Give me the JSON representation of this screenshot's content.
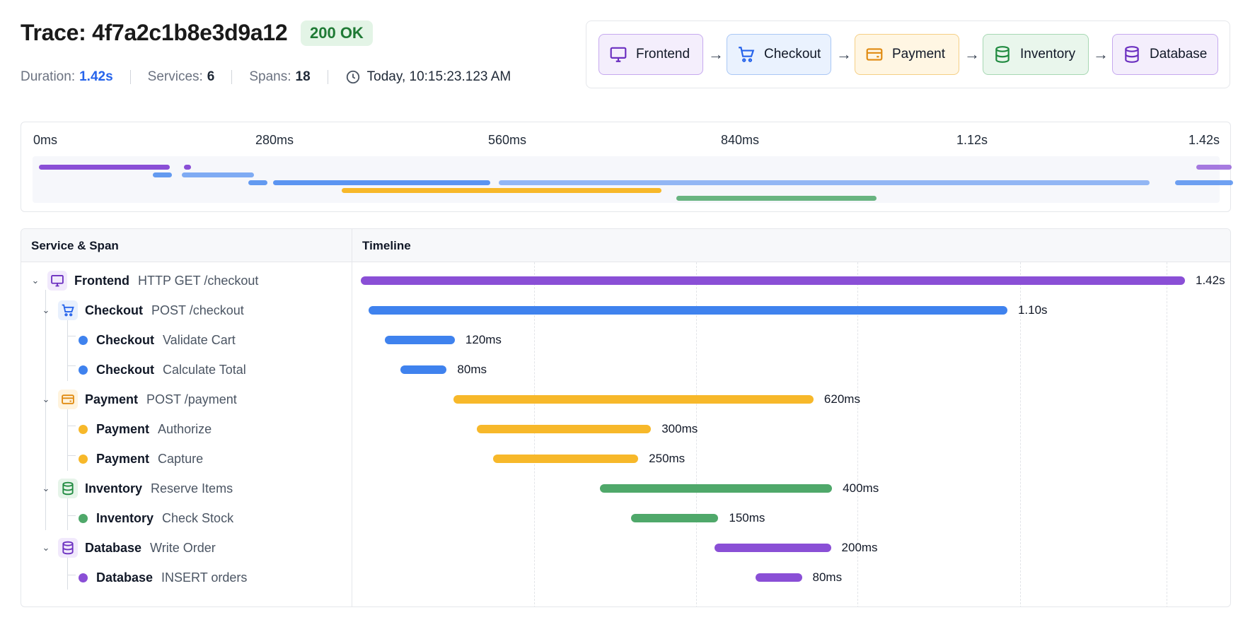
{
  "header": {
    "title": "Trace: 4f7a2c1b8e3d9a12",
    "status": "200 OK",
    "duration_label": "Duration:",
    "duration_value": "1.42s",
    "services_label": "Services:",
    "services_value": "6",
    "spans_label": "Spans:",
    "spans_value": "18",
    "timestamp": "Today, 10:15:23.123 AM"
  },
  "service_map": {
    "nodes": [
      {
        "label": "Frontend",
        "icon": "monitor-icon",
        "color": "#7e3fce"
      },
      {
        "label": "Checkout",
        "icon": "cart-icon",
        "color": "#2f6fe8"
      },
      {
        "label": "Payment",
        "icon": "card-icon",
        "color": "#e8961a"
      },
      {
        "label": "Inventory",
        "icon": "database-icon",
        "color": "#2f8a4a"
      },
      {
        "label": "Database",
        "icon": "database-icon",
        "color": "#7a4cc7"
      }
    ]
  },
  "overview": {
    "ticks": [
      "0ms",
      "280ms",
      "560ms",
      "840ms",
      "1.12s",
      "1.42s"
    ]
  },
  "table": {
    "col_service": "Service & Span",
    "col_timeline": "Timeline"
  },
  "spans": [
    {
      "service": "Frontend",
      "span": "HTTP GET /checkout",
      "start_ms": 0,
      "duration_ms": 1420,
      "duration_label": "1.42s",
      "color": "#8a4fd6",
      "depth": 0,
      "kind": "root",
      "icon": "monitor-icon"
    },
    {
      "service": "Checkout",
      "span": "POST /checkout",
      "start_ms": 14,
      "duration_ms": 1100,
      "duration_label": "1.10s",
      "color": "#3f82ee",
      "depth": 1,
      "kind": "group",
      "icon": "cart-icon"
    },
    {
      "service": "Checkout",
      "span": "Validate Cart",
      "start_ms": 42,
      "duration_ms": 120,
      "duration_label": "120ms",
      "color": "#3f82ee",
      "depth": 2,
      "kind": "leaf"
    },
    {
      "service": "Checkout",
      "span": "Calculate Total",
      "start_ms": 68,
      "duration_ms": 80,
      "duration_label": "80ms",
      "color": "#3f82ee",
      "depth": 2,
      "kind": "leaf"
    },
    {
      "service": "Payment",
      "span": "POST /payment",
      "start_ms": 160,
      "duration_ms": 620,
      "duration_label": "620ms",
      "color": "#f7b82a",
      "depth": 1,
      "kind": "group",
      "icon": "card-icon"
    },
    {
      "service": "Payment",
      "span": "Authorize",
      "start_ms": 200,
      "duration_ms": 300,
      "duration_label": "300ms",
      "color": "#f7b82a",
      "depth": 2,
      "kind": "leaf"
    },
    {
      "service": "Payment",
      "span": "Capture",
      "start_ms": 228,
      "duration_ms": 250,
      "duration_label": "250ms",
      "color": "#f7b82a",
      "depth": 2,
      "kind": "leaf"
    },
    {
      "service": "Inventory",
      "span": "Reserve Items",
      "start_ms": 412,
      "duration_ms": 400,
      "duration_label": "400ms",
      "color": "#4fa86a",
      "depth": 1,
      "kind": "group",
      "icon": "database-icon"
    },
    {
      "service": "Inventory",
      "span": "Check Stock",
      "start_ms": 466,
      "duration_ms": 150,
      "duration_label": "150ms",
      "color": "#4fa86a",
      "depth": 2,
      "kind": "leaf"
    },
    {
      "service": "Database",
      "span": "Write Order",
      "start_ms": 610,
      "duration_ms": 200,
      "duration_label": "200ms",
      "color": "#8a4fd6",
      "depth": 1,
      "kind": "group",
      "icon": "database-icon"
    },
    {
      "service": "Database",
      "span": "INSERT orders",
      "start_ms": 680,
      "duration_ms": 80,
      "duration_label": "80ms",
      "color": "#8a4fd6",
      "depth": 2,
      "kind": "leaf"
    }
  ],
  "colors": {
    "frontend": "#8a4fd6",
    "checkout": "#3f82ee",
    "payment": "#f7b82a",
    "inventory": "#4fa86a",
    "database": "#8a4fd6",
    "status_ok": "#1f7a35",
    "accent": "#2563eb"
  }
}
